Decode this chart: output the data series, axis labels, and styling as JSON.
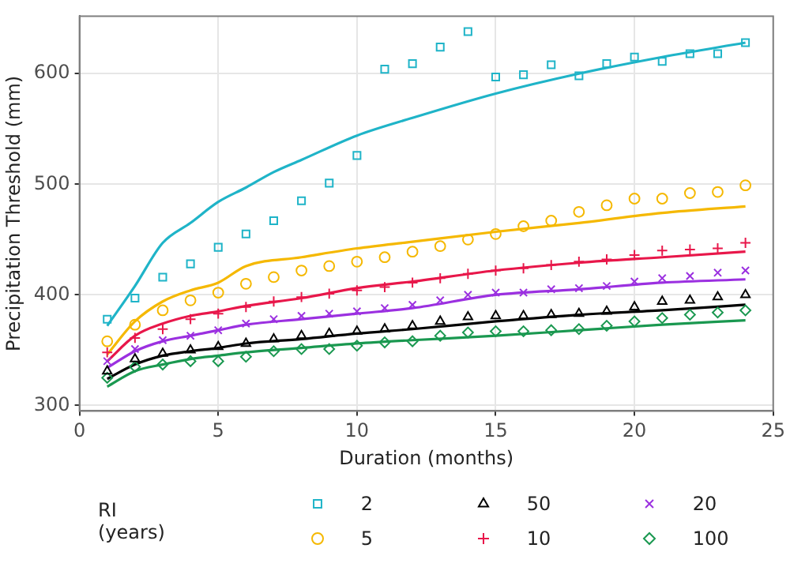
{
  "chart_data": {
    "type": "scatter",
    "xlabel": "Duration (months)",
    "ylabel": "Precipitation Threshold (mm)",
    "legend_title": "RI (years)",
    "legend": "bottom",
    "grid": true,
    "xlim": [
      0,
      25
    ],
    "xticks": [
      0,
      5,
      10,
      15,
      20,
      25
    ],
    "ylim": [
      295,
      652
    ],
    "yticks": [
      300,
      400,
      500,
      600
    ],
    "x": [
      1,
      2,
      3,
      4,
      5,
      6,
      7,
      8,
      9,
      10,
      11,
      12,
      13,
      14,
      15,
      16,
      17,
      18,
      19,
      20,
      21,
      22,
      23,
      24
    ],
    "series": [
      {
        "name": "2",
        "color": "#1fb4c8",
        "marker": "square",
        "values": [
          378,
          397,
          416,
          428,
          443,
          455,
          467,
          485,
          501,
          526,
          604,
          609,
          624,
          638,
          597,
          599,
          608,
          598,
          609,
          615,
          611,
          618,
          618,
          628
        ]
      },
      {
        "name": "5",
        "color": "#f5b800",
        "marker": "circle",
        "values": [
          358,
          373,
          386,
          395,
          402,
          410,
          416,
          422,
          426,
          430,
          434,
          439,
          444,
          450,
          455,
          462,
          467,
          475,
          481,
          487,
          487,
          492,
          493,
          499
        ]
      },
      {
        "name": "50",
        "color": "#000000",
        "marker": "triangle",
        "values": [
          331,
          342,
          347,
          350,
          353,
          356,
          360,
          363,
          365,
          367,
          369,
          372,
          376,
          380,
          381,
          381,
          382,
          383,
          385,
          389,
          394,
          395,
          398,
          400
        ]
      },
      {
        "name": "10",
        "color": "#e8174a",
        "marker": "cross",
        "values": [
          348,
          361,
          369,
          378,
          383,
          389,
          394,
          398,
          401,
          404,
          407,
          411,
          415,
          419,
          422,
          424,
          427,
          430,
          432,
          436,
          440,
          441,
          442,
          447
        ]
      },
      {
        "name": "20",
        "color": "#9b30e0",
        "marker": "crossRot",
        "values": [
          340,
          351,
          359,
          363,
          368,
          374,
          378,
          381,
          383,
          385,
          388,
          391,
          395,
          400,
          402,
          402,
          405,
          406,
          408,
          412,
          415,
          417,
          420,
          422
        ]
      },
      {
        "name": "100",
        "color": "#1a9850",
        "marker": "diamond",
        "values": [
          325,
          335,
          337,
          340,
          340,
          344,
          349,
          351,
          351,
          354,
          357,
          358,
          363,
          366,
          367,
          367,
          368,
          369,
          372,
          376,
          379,
          382,
          384,
          386
        ]
      },
      {
        "type": "line",
        "color": "#1fb4c8",
        "marker": "none",
        "x": [
          1,
          2,
          3,
          4,
          5,
          6,
          7,
          8,
          10,
          12,
          15,
          18,
          21,
          24
        ],
        "values": [
          372,
          408,
          447,
          465,
          484,
          497,
          511,
          522,
          544,
          560,
          582,
          600,
          615,
          628
        ]
      },
      {
        "type": "line",
        "color": "#f5b800",
        "marker": "none",
        "x": [
          1,
          2,
          3,
          4,
          5,
          6,
          8,
          10,
          12,
          15,
          18,
          21,
          24
        ],
        "values": [
          346,
          376,
          394,
          404,
          411,
          426,
          434,
          442,
          448,
          457,
          465,
          474,
          480
        ]
      },
      {
        "type": "line",
        "color": "#000000",
        "marker": "none",
        "x": [
          1,
          2,
          3,
          4,
          5,
          6,
          8,
          10,
          12,
          15,
          18,
          21,
          24
        ],
        "values": [
          324,
          337,
          345,
          349,
          352,
          356,
          360,
          365,
          369,
          376,
          382,
          386,
          391
        ]
      },
      {
        "type": "line",
        "color": "#e8174a",
        "marker": "none",
        "x": [
          1,
          2,
          3,
          4,
          5,
          6,
          8,
          10,
          12,
          15,
          18,
          21,
          24
        ],
        "values": [
          340,
          363,
          374,
          381,
          385,
          390,
          397,
          406,
          412,
          422,
          429,
          434,
          439
        ]
      },
      {
        "type": "line",
        "color": "#9b30e0",
        "marker": "none",
        "x": [
          1,
          2,
          3,
          4,
          5,
          6,
          8,
          10,
          12,
          15,
          18,
          21,
          24
        ],
        "values": [
          334,
          349,
          358,
          363,
          368,
          373,
          378,
          383,
          388,
          400,
          405,
          411,
          414
        ]
      },
      {
        "type": "line",
        "color": "#1a9850",
        "marker": "none",
        "x": [
          1,
          2,
          3,
          4,
          5,
          6,
          8,
          10,
          12,
          15,
          18,
          21,
          24
        ],
        "values": [
          317,
          331,
          337,
          342,
          345,
          348,
          352,
          356,
          359,
          363,
          368,
          373,
          377
        ]
      }
    ]
  }
}
